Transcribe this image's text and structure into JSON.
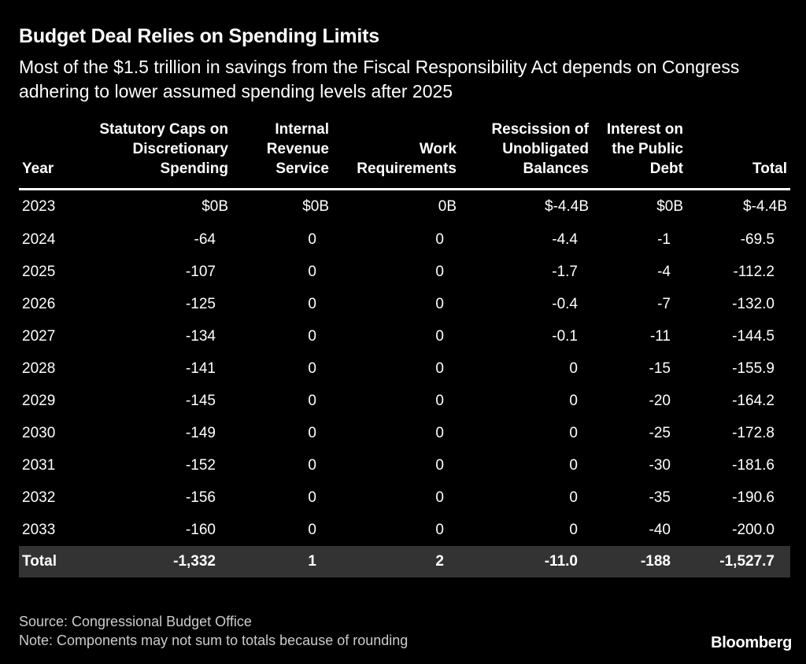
{
  "title": "Budget Deal Relies on Spending Limits",
  "subtitle": "Most of the $1.5 trillion in savings from the Fiscal Responsibility Act depends on Congress adhering to lower assumed spending levels after 2025",
  "chart_data": {
    "type": "table",
    "columns": [
      "Year",
      "Statutory Caps on Discretionary Spending",
      "Internal Revenue Service",
      "Work Requirements",
      "Rescission of Unobligated Balances",
      "Interest on the Public Debt",
      "Total"
    ],
    "rows": [
      [
        "2023",
        "$0B",
        "$0B",
        "0B",
        "$-4.4B",
        "$0B",
        "$-4.4B"
      ],
      [
        "2024",
        "-64",
        "0",
        "0",
        "-4.4",
        "-1",
        "-69.5"
      ],
      [
        "2025",
        "-107",
        "0",
        "0",
        "-1.7",
        "-4",
        "-112.2"
      ],
      [
        "2026",
        "-125",
        "0",
        "0",
        "-0.4",
        "-7",
        "-132.0"
      ],
      [
        "2027",
        "-134",
        "0",
        "0",
        "-0.1",
        "-11",
        "-144.5"
      ],
      [
        "2028",
        "-141",
        "0",
        "0",
        "0",
        "-15",
        "-155.9"
      ],
      [
        "2029",
        "-145",
        "0",
        "0",
        "0",
        "-20",
        "-164.2"
      ],
      [
        "2030",
        "-149",
        "0",
        "0",
        "0",
        "-25",
        "-172.8"
      ],
      [
        "2031",
        "-152",
        "0",
        "0",
        "0",
        "-30",
        "-181.6"
      ],
      [
        "2032",
        "-156",
        "0",
        "0",
        "0",
        "-35",
        "-190.6"
      ],
      [
        "2033",
        "-160",
        "0",
        "0",
        "0",
        "-40",
        "-200.0"
      ]
    ],
    "total_row": [
      "Total",
      "-1,332",
      "1",
      "2",
      "-11.0",
      "-188",
      "-1,527.7"
    ]
  },
  "footer": {
    "source": "Source: Congressional Budget Office",
    "note": "Note: Components may not sum to totals because of rounding"
  },
  "brand": "Bloomberg"
}
